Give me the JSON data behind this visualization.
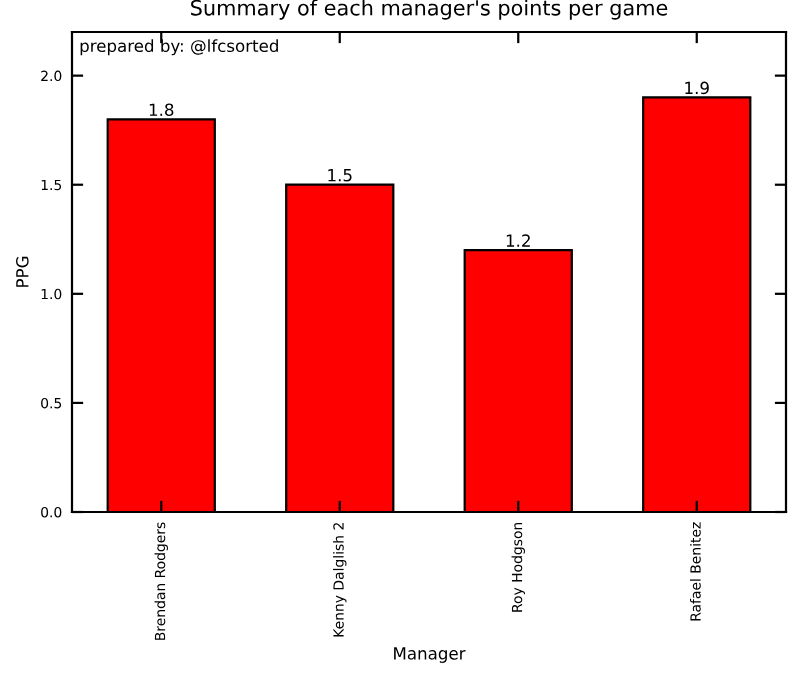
{
  "chart_data": {
    "type": "bar",
    "title": "Summary of each manager's points per game",
    "xlabel": "Manager",
    "ylabel": "PPG",
    "annotations": [
      "prepared by: @lfcsorted"
    ],
    "categories": [
      "Brendan Rodgers",
      "Kenny Dalglish 2",
      "Roy Hodgson",
      "Rafael Benitez"
    ],
    "values": [
      1.8,
      1.5,
      1.2,
      1.9
    ],
    "color": "#ff0000",
    "ylim": [
      0,
      2.2
    ],
    "yticks": [
      {
        "value": 0,
        "label": "0.0"
      },
      {
        "value": 0.5,
        "label": "0.5"
      },
      {
        "value": 1.0,
        "label": "1.0"
      },
      {
        "value": 1.5,
        "label": "1.5"
      },
      {
        "value": 2.0,
        "label": "2.0"
      }
    ],
    "data_labels": true,
    "grid": false,
    "legend": false
  }
}
